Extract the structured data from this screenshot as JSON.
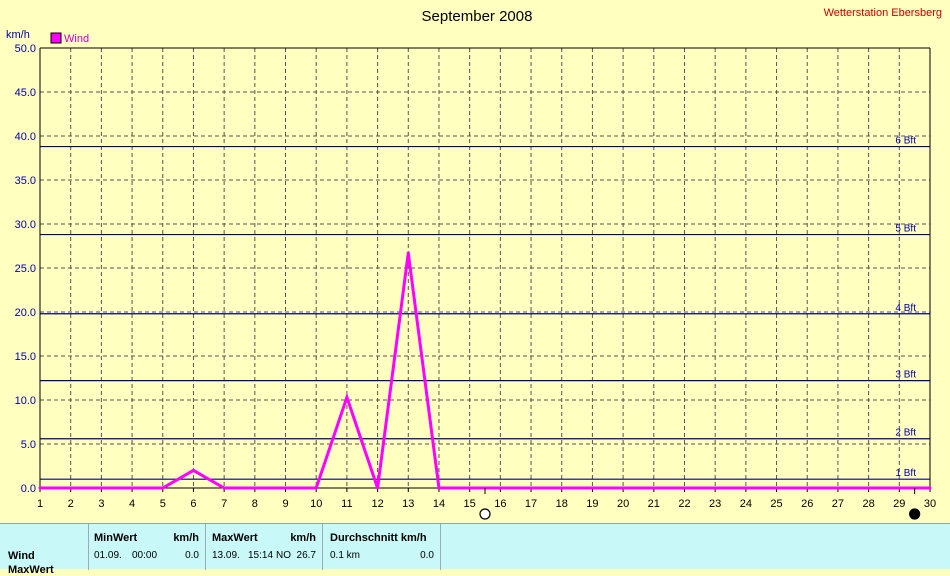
{
  "chart_data": {
    "type": "line",
    "title": "September 2008",
    "station": "Wetterstation Ebersberg",
    "ylabel": "km/h",
    "legend": "Wind",
    "legend_color": "#ff00ff",
    "legend_placement": "top-left",
    "ylim": [
      0,
      50
    ],
    "yticks": [
      "0.0",
      "5.0",
      "10.0",
      "15.0",
      "20.0",
      "25.0",
      "30.0",
      "35.0",
      "40.0",
      "45.0",
      "50.0"
    ],
    "xlim": [
      1,
      30
    ],
    "xticks": [
      1,
      2,
      3,
      4,
      5,
      6,
      7,
      8,
      9,
      10,
      11,
      12,
      13,
      14,
      15,
      16,
      17,
      18,
      19,
      20,
      21,
      22,
      23,
      24,
      25,
      26,
      27,
      28,
      29,
      30
    ],
    "grid": true,
    "beaufort": [
      {
        "label": "1 Bft",
        "value": 1.0
      },
      {
        "label": "2 Bft",
        "value": 5.6
      },
      {
        "label": "3 Bft",
        "value": 12.2
      },
      {
        "label": "4 Bft",
        "value": 19.8
      },
      {
        "label": "5 Bft",
        "value": 28.8
      },
      {
        "label": "6 Bft",
        "value": 38.8
      }
    ],
    "series": [
      {
        "name": "Wind",
        "color": "#ff00ff",
        "x": [
          1,
          2,
          3,
          4,
          5,
          6,
          7,
          8,
          9,
          10,
          11,
          12,
          13,
          14,
          15,
          16,
          17,
          18,
          19,
          20,
          21,
          22,
          23,
          24,
          25,
          26,
          27,
          28,
          29,
          30
        ],
        "values": [
          0,
          0,
          0,
          0,
          0,
          2.0,
          0,
          0,
          0,
          0,
          10.3,
          0,
          26.7,
          0,
          0,
          0,
          0,
          0,
          0,
          0,
          0,
          0,
          0,
          0,
          0,
          0,
          0,
          0,
          0,
          0
        ]
      }
    ],
    "moon_phases": [
      {
        "phase": "full",
        "day": 15.5
      },
      {
        "phase": "new",
        "day": 29.5
      }
    ]
  },
  "panel": {
    "row_label": "Wind",
    "row_label_2": "MaxWert",
    "min": {
      "header": "MinWert",
      "unit": "km/h",
      "date": "01.09.",
      "time": "00:00",
      "value": "0.0"
    },
    "max": {
      "header": "MaxWert",
      "unit": "km/h",
      "date": "13.09.",
      "time": "15:14",
      "dir": "NO",
      "value": "26.7"
    },
    "avg": {
      "header": "Durchschnitt km/h",
      "dist": "0.1 km",
      "value": "0.0"
    }
  }
}
